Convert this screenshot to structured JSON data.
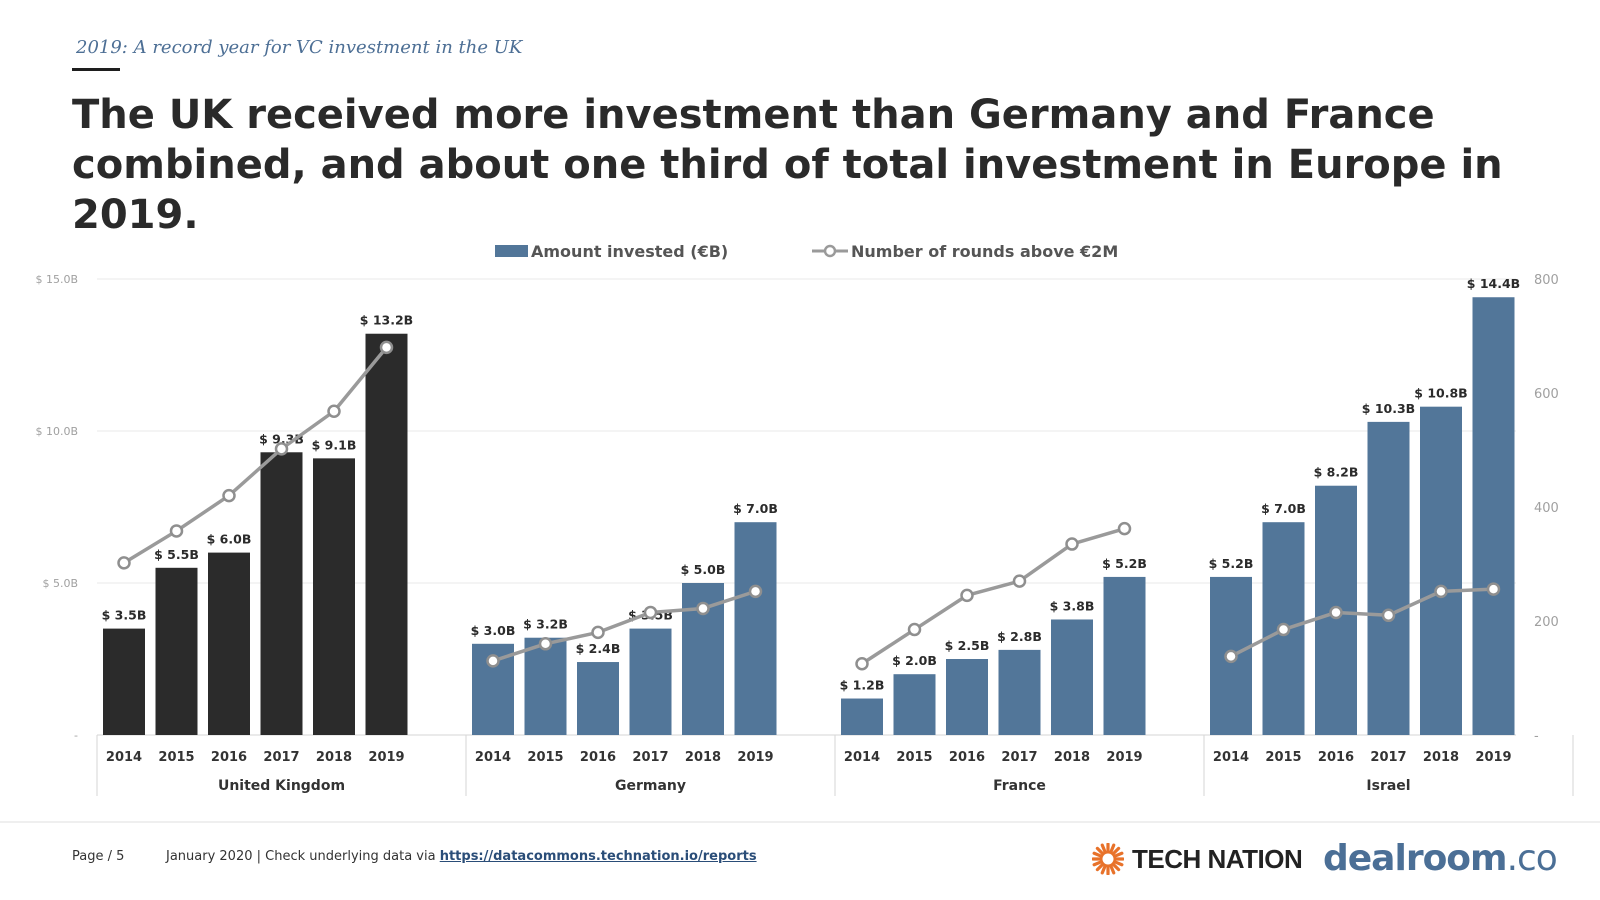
{
  "header": {
    "subtitle": "2019: A record year for VC investment in the UK",
    "headline": "The UK received more investment than Germany and France combined, and about one third of total investment in Europe in 2019."
  },
  "footer": {
    "page": "Page / 5",
    "source_prefix": "January 2020 | Check underlying data via ",
    "source_link": "https://datacommons.technation.io/reports",
    "logo_technation": "TECH NATION",
    "logo_dealroom": "dealroom",
    "logo_dealroom_suffix": ".co"
  },
  "colors": {
    "uk_bar": "#2b2b2b",
    "other_bar": "#527699",
    "line": "#9a9a9a",
    "marker_stroke": "#8f8f8f",
    "grid": "#e9e9e9",
    "axis_text": "#a0a0a0",
    "label_text": "#2b2b2b",
    "technation_orange": "#e8722a"
  },
  "chart_data": {
    "type": "bar",
    "title": "",
    "legend": {
      "position": "top-center",
      "bar_label": "Amount invested (€B)",
      "line_label": "Number of rounds above €2M"
    },
    "categories": [
      "2014",
      "2015",
      "2016",
      "2017",
      "2018",
      "2019"
    ],
    "left_axis": {
      "min": 0,
      "max": 15,
      "ticks": [
        0,
        5,
        10,
        15
      ],
      "tick_labels": [
        "-",
        "$ 5.0B",
        "$ 10.0B",
        "$ 15.0B"
      ]
    },
    "right_axis": {
      "min": 0,
      "max": 800,
      "ticks": [
        0,
        200,
        400,
        600,
        800
      ],
      "tick_labels": [
        "-",
        "200",
        "400",
        "600",
        "800"
      ]
    },
    "grid": true,
    "groups": [
      {
        "name": "United Kingdom",
        "amount": [
          3.5,
          5.5,
          6.0,
          9.3,
          9.1,
          13.2
        ],
        "amount_labels": [
          "$ 3.5B",
          "$ 5.5B",
          "$ 6.0B",
          "$ 9.3B",
          "$ 9.1B",
          "$ 13.2B"
        ],
        "rounds": [
          302,
          358,
          420,
          502,
          568,
          680
        ]
      },
      {
        "name": "Germany",
        "amount": [
          3.0,
          3.2,
          2.4,
          3.5,
          5.0,
          7.0
        ],
        "amount_labels": [
          "$ 3.0B",
          "$ 3.2B",
          "$ 2.4B",
          "$ 3.5B",
          "$ 5.0B",
          "$ 7.0B"
        ],
        "rounds": [
          130,
          160,
          180,
          215,
          222,
          252
        ]
      },
      {
        "name": "France",
        "amount": [
          1.2,
          2.0,
          2.5,
          2.8,
          3.8,
          5.2
        ],
        "amount_labels": [
          "$ 1.2B",
          "$ 2.0B",
          "$ 2.5B",
          "$ 2.8B",
          "$ 3.8B",
          "$ 5.2B"
        ],
        "rounds": [
          125,
          185,
          245,
          270,
          335,
          362
        ]
      },
      {
        "name": "Israel",
        "amount": [
          5.2,
          7.0,
          8.2,
          10.3,
          10.8,
          14.4
        ],
        "amount_labels": [
          "$ 5.2B",
          "$ 7.0B",
          "$ 8.2B",
          "$ 10.3B",
          "$ 10.8B",
          "$ 14.4B"
        ],
        "rounds": [
          138,
          185,
          215,
          210,
          252,
          256
        ]
      }
    ]
  }
}
